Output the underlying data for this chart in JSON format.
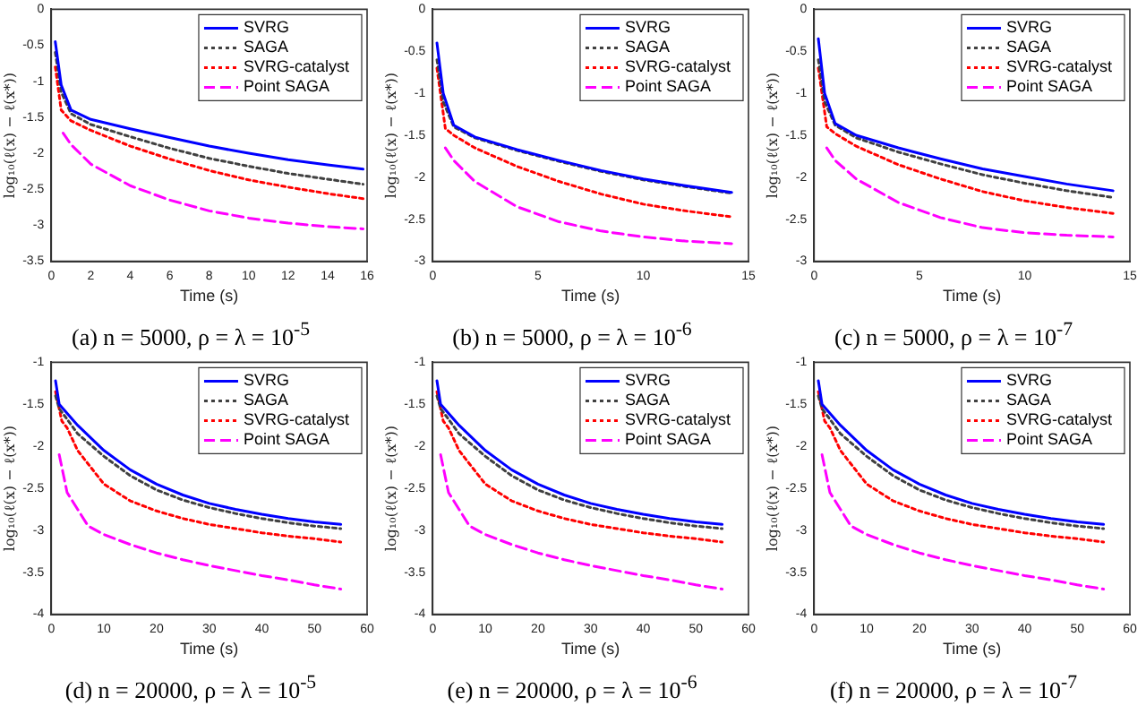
{
  "chart_data": [
    {
      "type": "line",
      "title": "(a) n = 5000,  ρ = λ = 10$^{-5}$",
      "xlabel": "Time (s)",
      "ylabel": "log₁₀(ℓ(x) − ℓ(x*))",
      "xlim": [
        0,
        16
      ],
      "xticks": [
        0,
        2,
        4,
        6,
        8,
        10,
        12,
        14,
        16
      ],
      "ylim": [
        -3.5,
        0
      ],
      "yticks": [
        -3.5,
        -3,
        -2.5,
        -2,
        -1.5,
        -1,
        -0.5,
        0
      ],
      "legend": "top right",
      "series": [
        {
          "name": "SVRG",
          "color": "#0000ff",
          "line_style": "solid",
          "x": [
            0.2,
            0.5,
            1,
            2,
            4,
            6,
            8,
            10,
            12,
            14,
            15.8
          ],
          "values": [
            -0.45,
            -1.05,
            -1.4,
            -1.53,
            -1.66,
            -1.78,
            -1.9,
            -2.0,
            -2.09,
            -2.16,
            -2.22
          ]
        },
        {
          "name": "SAGA",
          "color": "#404040",
          "line_style": "dotted",
          "x": [
            0.2,
            0.5,
            1,
            2,
            4,
            6,
            8,
            10,
            12,
            14,
            15.8
          ],
          "values": [
            -0.6,
            -1.15,
            -1.45,
            -1.6,
            -1.77,
            -1.93,
            -2.07,
            -2.18,
            -2.28,
            -2.36,
            -2.43
          ]
        },
        {
          "name": "SVRG-catalyst",
          "color": "#ff0000",
          "line_style": "dotted",
          "x": [
            0.2,
            0.5,
            1,
            2,
            4,
            6,
            8,
            10,
            12,
            14,
            15.8
          ],
          "values": [
            -0.8,
            -1.4,
            -1.55,
            -1.68,
            -1.9,
            -2.08,
            -2.24,
            -2.37,
            -2.47,
            -2.56,
            -2.63
          ]
        },
        {
          "name": "Point SAGA",
          "color": "#ff00ff",
          "line_style": "dashed",
          "x": [
            0.6,
            1,
            2,
            4,
            6,
            8,
            10,
            12,
            14,
            15.8
          ],
          "values": [
            -1.72,
            -1.88,
            -2.15,
            -2.45,
            -2.65,
            -2.8,
            -2.9,
            -2.97,
            -3.02,
            -3.05
          ]
        }
      ]
    },
    {
      "type": "line",
      "title": "(b) n = 5000,  ρ = λ = 10$^{-6}$",
      "xlabel": "Time (s)",
      "ylabel": "log₁₀(ℓ(x) − ℓ(x*))",
      "xlim": [
        0,
        15
      ],
      "xticks": [
        0,
        5,
        10,
        15
      ],
      "ylim": [
        -3,
        0
      ],
      "yticks": [
        -3,
        -2.5,
        -2,
        -1.5,
        -1,
        -0.5,
        0
      ],
      "legend": "top right",
      "series": [
        {
          "name": "SVRG",
          "color": "#0000ff",
          "line_style": "solid",
          "x": [
            0.2,
            0.5,
            1,
            2,
            4,
            6,
            8,
            10,
            12,
            14.2
          ],
          "values": [
            -0.4,
            -1.0,
            -1.38,
            -1.52,
            -1.67,
            -1.8,
            -1.92,
            -2.02,
            -2.1,
            -2.18
          ]
        },
        {
          "name": "SAGA",
          "color": "#404040",
          "line_style": "dotted",
          "x": [
            0.2,
            0.5,
            1,
            2,
            4,
            6,
            8,
            10,
            12,
            14.2
          ],
          "values": [
            -0.6,
            -1.1,
            -1.4,
            -1.53,
            -1.68,
            -1.81,
            -1.93,
            -2.03,
            -2.11,
            -2.19
          ]
        },
        {
          "name": "SVRG-catalyst",
          "color": "#ff0000",
          "line_style": "dotted",
          "x": [
            0.2,
            0.6,
            1,
            2,
            4,
            6,
            8,
            10,
            12,
            14.2
          ],
          "values": [
            -0.7,
            -1.42,
            -1.5,
            -1.65,
            -1.87,
            -2.05,
            -2.2,
            -2.32,
            -2.4,
            -2.47
          ]
        },
        {
          "name": "Point SAGA",
          "color": "#ff00ff",
          "line_style": "dashed",
          "x": [
            0.6,
            1,
            2,
            4,
            6,
            8,
            10,
            12,
            14.2
          ],
          "values": [
            -1.65,
            -1.8,
            -2.05,
            -2.35,
            -2.53,
            -2.64,
            -2.71,
            -2.76,
            -2.79
          ]
        }
      ]
    },
    {
      "type": "line",
      "title": "(c) n = 5000,  ρ = λ = 10$^{-7}$",
      "xlabel": "Time (s)",
      "ylabel": "log₁₀(ℓ(x) − ℓ(x*))",
      "xlim": [
        0,
        15
      ],
      "xticks": [
        0,
        5,
        10,
        15
      ],
      "ylim": [
        -3,
        0
      ],
      "yticks": [
        -3,
        -2.5,
        -2,
        -1.5,
        -1,
        -0.5,
        0
      ],
      "legend": "top right",
      "series": [
        {
          "name": "SVRG",
          "color": "#0000ff",
          "line_style": "solid",
          "x": [
            0.2,
            0.5,
            1,
            2,
            4,
            6,
            8,
            10,
            12,
            14.2
          ],
          "values": [
            -0.35,
            -1.0,
            -1.36,
            -1.5,
            -1.65,
            -1.78,
            -1.9,
            -1.99,
            -2.08,
            -2.16
          ]
        },
        {
          "name": "SAGA",
          "color": "#404040",
          "line_style": "dotted",
          "x": [
            0.2,
            0.5,
            1,
            2,
            4,
            6,
            8,
            10,
            12,
            14.2
          ],
          "values": [
            -0.6,
            -1.1,
            -1.38,
            -1.53,
            -1.7,
            -1.84,
            -1.97,
            -2.07,
            -2.16,
            -2.24
          ]
        },
        {
          "name": "SVRG-catalyst",
          "color": "#ff0000",
          "line_style": "dotted",
          "x": [
            0.2,
            0.6,
            1,
            2,
            4,
            6,
            8,
            10,
            12,
            14.2
          ],
          "values": [
            -0.7,
            -1.4,
            -1.48,
            -1.63,
            -1.85,
            -2.02,
            -2.17,
            -2.28,
            -2.36,
            -2.43
          ]
        },
        {
          "name": "Point SAGA",
          "color": "#ff00ff",
          "line_style": "dashed",
          "x": [
            0.6,
            1,
            2,
            4,
            6,
            8,
            10,
            12,
            14.2
          ],
          "values": [
            -1.65,
            -1.8,
            -2.02,
            -2.3,
            -2.48,
            -2.6,
            -2.66,
            -2.69,
            -2.71
          ]
        }
      ]
    },
    {
      "type": "line",
      "title": "(d) n = 20000,  ρ = λ = 10$^{-5}$",
      "xlabel": "Time (s)",
      "ylabel": "log₁₀(ℓ(x) − ℓ(x*))",
      "xlim": [
        0,
        60
      ],
      "xticks": [
        0,
        10,
        20,
        30,
        40,
        50,
        60
      ],
      "ylim": [
        -4,
        -1
      ],
      "yticks": [
        -4,
        -3.5,
        -3,
        -2.5,
        -2,
        -1.5,
        -1
      ],
      "legend": "top right",
      "series": [
        {
          "name": "SVRG",
          "color": "#0000ff",
          "line_style": "solid",
          "x": [
            0.8,
            1.5,
            5,
            10,
            15,
            20,
            25,
            30,
            35,
            40,
            45,
            50,
            55
          ],
          "values": [
            -1.22,
            -1.5,
            -1.75,
            -2.05,
            -2.28,
            -2.45,
            -2.58,
            -2.68,
            -2.75,
            -2.81,
            -2.86,
            -2.9,
            -2.93
          ]
        },
        {
          "name": "SAGA",
          "color": "#404040",
          "line_style": "dotted",
          "x": [
            0.8,
            1.5,
            5,
            10,
            15,
            20,
            25,
            30,
            35,
            40,
            45,
            50,
            55
          ],
          "values": [
            -1.4,
            -1.55,
            -1.85,
            -2.12,
            -2.35,
            -2.52,
            -2.64,
            -2.73,
            -2.8,
            -2.86,
            -2.91,
            -2.95,
            -2.98
          ]
        },
        {
          "name": "SVRG-catalyst",
          "color": "#ff0000",
          "line_style": "dotted",
          "x": [
            0.8,
            2,
            3,
            5,
            10,
            15,
            20,
            25,
            30,
            35,
            40,
            45,
            50,
            55
          ],
          "values": [
            -1.35,
            -1.7,
            -1.78,
            -2.05,
            -2.45,
            -2.65,
            -2.77,
            -2.86,
            -2.93,
            -2.98,
            -3.03,
            -3.07,
            -3.1,
            -3.14
          ]
        },
        {
          "name": "Point SAGA",
          "color": "#ff00ff",
          "line_style": "dashed",
          "x": [
            1.5,
            3,
            5,
            7,
            10,
            15,
            20,
            25,
            30,
            35,
            40,
            45,
            50,
            55
          ],
          "values": [
            -2.1,
            -2.55,
            -2.75,
            -2.95,
            -3.05,
            -3.17,
            -3.27,
            -3.35,
            -3.42,
            -3.48,
            -3.54,
            -3.59,
            -3.65,
            -3.7
          ]
        }
      ]
    },
    {
      "type": "line",
      "title": "(e) n = 20000,  ρ = λ = 10$^{-6}$",
      "xlabel": "Time (s)",
      "ylabel": "log₁₀(ℓ(x) − ℓ(x*))",
      "xlim": [
        0,
        60
      ],
      "xticks": [
        0,
        10,
        20,
        30,
        40,
        50,
        60
      ],
      "ylim": [
        -4,
        -1
      ],
      "yticks": [
        -4,
        -3.5,
        -3,
        -2.5,
        -2,
        -1.5,
        -1
      ],
      "legend": "top right",
      "series": [
        {
          "name": "SVRG",
          "color": "#0000ff",
          "line_style": "solid",
          "x": [
            0.8,
            1.5,
            5,
            10,
            15,
            20,
            25,
            30,
            35,
            40,
            45,
            50,
            55
          ],
          "values": [
            -1.22,
            -1.5,
            -1.75,
            -2.05,
            -2.28,
            -2.45,
            -2.58,
            -2.68,
            -2.75,
            -2.81,
            -2.86,
            -2.9,
            -2.93
          ]
        },
        {
          "name": "SAGA",
          "color": "#404040",
          "line_style": "dotted",
          "x": [
            0.8,
            1.5,
            5,
            10,
            15,
            20,
            25,
            30,
            35,
            40,
            45,
            50,
            55
          ],
          "values": [
            -1.4,
            -1.55,
            -1.85,
            -2.12,
            -2.35,
            -2.52,
            -2.64,
            -2.73,
            -2.8,
            -2.86,
            -2.91,
            -2.95,
            -2.98
          ]
        },
        {
          "name": "SVRG-catalyst",
          "color": "#ff0000",
          "line_style": "dotted",
          "x": [
            0.8,
            2,
            3,
            5,
            10,
            15,
            20,
            25,
            30,
            35,
            40,
            45,
            50,
            55
          ],
          "values": [
            -1.35,
            -1.7,
            -1.78,
            -2.05,
            -2.45,
            -2.65,
            -2.77,
            -2.86,
            -2.93,
            -2.98,
            -3.03,
            -3.07,
            -3.1,
            -3.14
          ]
        },
        {
          "name": "Point SAGA",
          "color": "#ff00ff",
          "line_style": "dashed",
          "x": [
            1.5,
            3,
            5,
            7,
            10,
            15,
            20,
            25,
            30,
            35,
            40,
            45,
            50,
            55
          ],
          "values": [
            -2.1,
            -2.55,
            -2.75,
            -2.95,
            -3.05,
            -3.17,
            -3.27,
            -3.35,
            -3.42,
            -3.48,
            -3.54,
            -3.59,
            -3.65,
            -3.7
          ]
        }
      ]
    },
    {
      "type": "line",
      "title": "(f) n = 20000,  ρ = λ = 10$^{-7}$",
      "xlabel": "Time (s)",
      "ylabel": "log₁₀(ℓ(x) − ℓ(x*))",
      "xlim": [
        0,
        60
      ],
      "xticks": [
        0,
        10,
        20,
        30,
        40,
        50,
        60
      ],
      "ylim": [
        -4,
        -1
      ],
      "yticks": [
        -4,
        -3.5,
        -3,
        -2.5,
        -2,
        -1.5,
        -1
      ],
      "legend": "top right",
      "series": [
        {
          "name": "SVRG",
          "color": "#0000ff",
          "line_style": "solid",
          "x": [
            0.8,
            1.5,
            5,
            10,
            15,
            20,
            25,
            30,
            35,
            40,
            45,
            50,
            55
          ],
          "values": [
            -1.22,
            -1.5,
            -1.75,
            -2.05,
            -2.28,
            -2.45,
            -2.58,
            -2.68,
            -2.75,
            -2.81,
            -2.86,
            -2.9,
            -2.93
          ]
        },
        {
          "name": "SAGA",
          "color": "#404040",
          "line_style": "dotted",
          "x": [
            0.8,
            1.5,
            5,
            10,
            15,
            20,
            25,
            30,
            35,
            40,
            45,
            50,
            55
          ],
          "values": [
            -1.4,
            -1.55,
            -1.85,
            -2.12,
            -2.35,
            -2.52,
            -2.64,
            -2.73,
            -2.8,
            -2.86,
            -2.91,
            -2.95,
            -2.98
          ]
        },
        {
          "name": "SVRG-catalyst",
          "color": "#ff0000",
          "line_style": "dotted",
          "x": [
            0.8,
            2,
            3,
            5,
            10,
            15,
            20,
            25,
            30,
            35,
            40,
            45,
            50,
            55
          ],
          "values": [
            -1.35,
            -1.7,
            -1.78,
            -2.05,
            -2.45,
            -2.65,
            -2.77,
            -2.86,
            -2.93,
            -2.98,
            -3.03,
            -3.07,
            -3.1,
            -3.14
          ]
        },
        {
          "name": "Point SAGA",
          "color": "#ff00ff",
          "line_style": "dashed",
          "x": [
            1.5,
            3,
            5,
            7,
            10,
            15,
            20,
            25,
            30,
            35,
            40,
            45,
            50,
            55
          ],
          "values": [
            -2.1,
            -2.55,
            -2.75,
            -2.95,
            -3.05,
            -3.17,
            -3.27,
            -3.35,
            -3.42,
            -3.48,
            -3.54,
            -3.59,
            -3.65,
            -3.7
          ]
        }
      ]
    }
  ]
}
